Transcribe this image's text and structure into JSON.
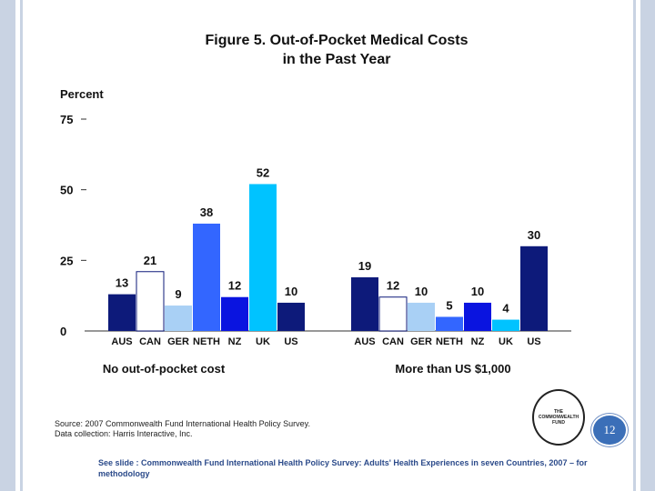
{
  "slide": {
    "title_line1": "Figure 5. Out-of-Pocket Medical Costs",
    "title_line2": "in the Past Year",
    "source_line1": "Source: 2007 Commonwealth Fund International Health Policy Survey.",
    "source_line2": "Data collection: Harris Interactive, Inc.",
    "footer_note": "See slide : Commonwealth Fund International Health Policy Survey: Adults' Health Experiences in seven Countries, 2007 – for methodology",
    "logo_line1": "THE",
    "logo_line2": "COMMONWEALTH",
    "logo_line3": "FUND",
    "page_number": "12"
  },
  "chart_data": {
    "type": "bar",
    "title": "Figure 5. Out-of-Pocket Medical Costs in the Past Year",
    "ylabel": "Percent",
    "ylim": [
      0,
      75
    ],
    "yticks": [
      0,
      25,
      50,
      75
    ],
    "categories": [
      "AUS",
      "CAN",
      "GER",
      "NETH",
      "NZ",
      "UK",
      "US"
    ],
    "groups": [
      {
        "name": "No out-of-pocket cost",
        "values": [
          13,
          21,
          9,
          38,
          12,
          52,
          10
        ]
      },
      {
        "name": "More than US $1,000",
        "values": [
          19,
          12,
          10,
          5,
          10,
          4,
          30
        ]
      }
    ],
    "colors": [
      "#0d1a7a",
      "#ffffff",
      "#a9d0f5",
      "#3366ff",
      "#0a14e0",
      "#00c3ff",
      "#0d1a7a"
    ],
    "grid": false
  }
}
